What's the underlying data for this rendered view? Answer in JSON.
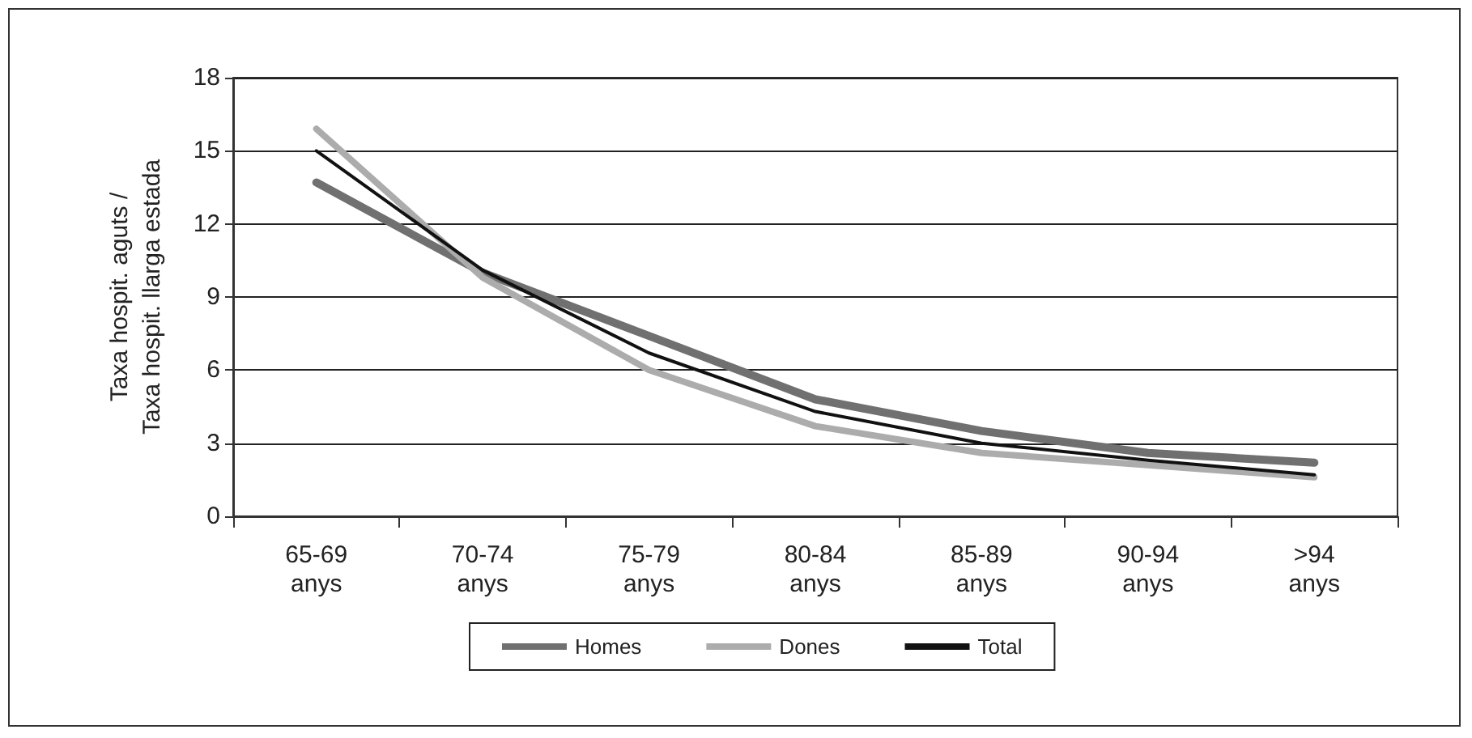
{
  "chart_data": {
    "type": "line",
    "ylabel": "Taxa hospit. aguts /\nTaxa hospit. llarga estada",
    "categories": [
      "65-69\nanys",
      "70-74\nanys",
      "75-79\nanys",
      "80-84\nanys",
      "85-89\nanys",
      "90-94\nanys",
      ">94\nanys"
    ],
    "series": [
      {
        "name": "Homes",
        "color": "#707070",
        "values": [
          13.7,
          10.0,
          7.4,
          4.8,
          3.5,
          2.6,
          2.2
        ]
      },
      {
        "name": "Dones",
        "color": "#acacac",
        "values": [
          15.9,
          9.8,
          6.0,
          3.7,
          2.6,
          2.1,
          1.6
        ]
      },
      {
        "name": "Total",
        "color": "#111111",
        "values": [
          15.0,
          10.1,
          6.7,
          4.3,
          3.0,
          2.3,
          1.7
        ]
      }
    ],
    "ylim": [
      0,
      18
    ],
    "yticks": [
      0,
      3,
      6,
      9,
      12,
      15,
      18
    ],
    "grid": "y",
    "legend": "bottom",
    "marker": "none",
    "line_style": "solid"
  }
}
